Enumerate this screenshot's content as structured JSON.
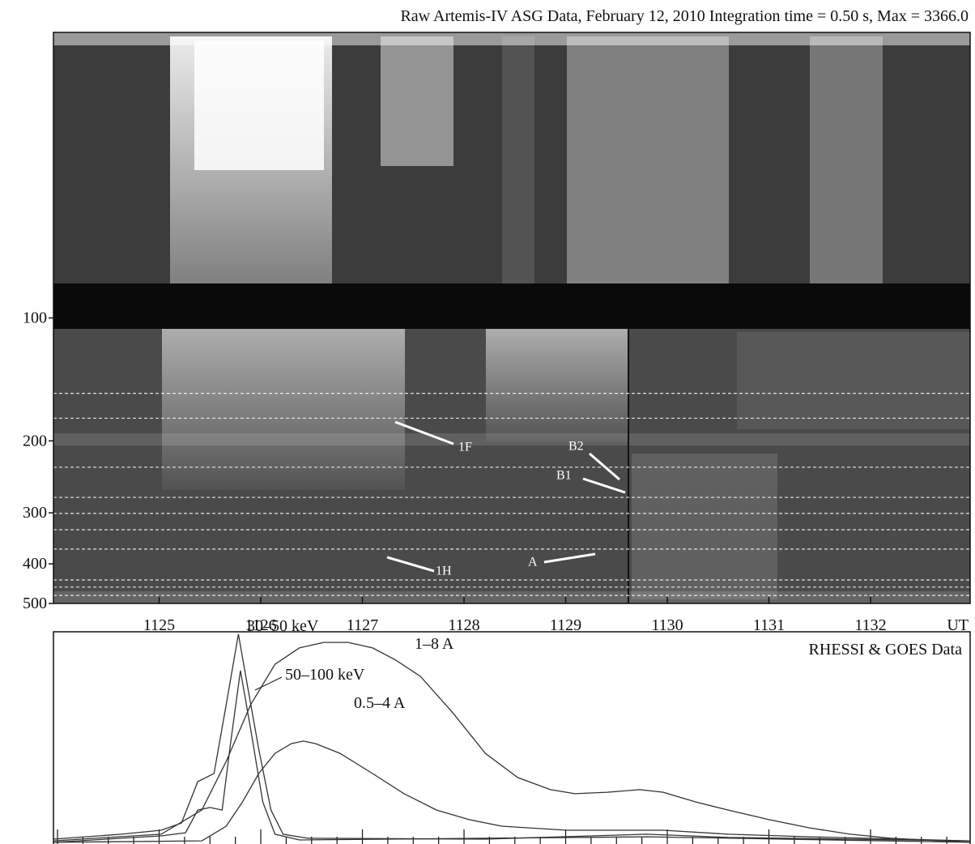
{
  "chart_data": [
    {
      "type": "spectrogram",
      "title": "Raw Artemis-IV ASG Data, February 12, 2010 Integration time = 0.50 s, Max = 3366.0",
      "xlim": [
        1123.96,
        1132.98
      ],
      "xticks": [
        1125,
        1126,
        1127,
        1128,
        1129,
        1130,
        1131,
        1132
      ],
      "x_label": "UT",
      "ylim": [
        20,
        500
      ],
      "yticks": [
        100,
        200,
        300,
        400,
        500
      ],
      "y_log": true,
      "y_inverted": true,
      "reference_lines": [
        153,
        176,
        232,
        275,
        301,
        330,
        368,
        438,
        456,
        478
      ],
      "annotations": [
        "1F",
        "B2",
        "B1",
        "A",
        "1H"
      ]
    },
    {
      "type": "line",
      "title": "RHESSI & GOES Data",
      "xlim": [
        1123.96,
        1132.98
      ],
      "xticks": [
        1124,
        1124.25,
        1124.5,
        1124.75,
        1125,
        1125.25,
        1125.5,
        1125.75,
        1126,
        1126.25,
        1126.5,
        1126.75,
        1127,
        1127.25,
        1127.5,
        1127.75,
        1128,
        1128.25,
        1128.5,
        1128.75,
        1129,
        1129.25,
        1129.5,
        1129.75,
        1130,
        1130.25,
        1130.5,
        1130.75,
        1131,
        1131.25,
        1131.5,
        1131.75,
        1132,
        1132.25,
        1132.5,
        1132.75
      ],
      "ylim": [
        0,
        100
      ],
      "series": [
        {
          "name": "30–50 keV",
          "color": "#333333",
          "x": [
            1123.96,
            1124.63,
            1125.02,
            1125.22,
            1125.38,
            1125.54,
            1125.66,
            1125.78,
            1125.86,
            1125.98,
            1126.1,
            1126.22,
            1126.46,
            1128.21,
            1129.8,
            1130.6,
            1132.98
          ],
          "values": [
            2.3,
            4.6,
            6.5,
            9.9,
            29.4,
            33.2,
            65.6,
            98.9,
            77.1,
            44.7,
            16.0,
            4.6,
            2.7,
            2.3,
            4.6,
            3.1,
            1.5
          ]
        },
        {
          "name": "50–100 keV",
          "color": "#333333",
          "x": [
            1123.96,
            1125.02,
            1125.26,
            1125.38,
            1125.5,
            1125.62,
            1125.7,
            1125.8,
            1125.9,
            1126.02,
            1126.14,
            1126.38,
            1129.8,
            1132.98
          ],
          "values": [
            0.8,
            3.8,
            5.3,
            16.0,
            17.2,
            16.0,
            46.6,
            81.7,
            54.2,
            19.8,
            4.6,
            1.9,
            3.4,
            0.8
          ]
        },
        {
          "name": "1–8 A",
          "color": "#333333",
          "x": [
            1123.96,
            1125.02,
            1125.42,
            1125.66,
            1125.9,
            1126.14,
            1126.38,
            1126.62,
            1126.86,
            1127.1,
            1127.33,
            1127.57,
            1127.89,
            1128.21,
            1128.53,
            1128.85,
            1129.09,
            1129.41,
            1129.73,
            1129.96,
            1130.28,
            1130.6,
            1131.0,
            1131.4,
            1131.8,
            1132.2,
            1132.98
          ],
          "values": [
            1.5,
            4.6,
            16.0,
            38.9,
            65.6,
            84.7,
            92.4,
            95.0,
            95.0,
            92.4,
            86.6,
            79.0,
            61.8,
            42.7,
            31.3,
            25.6,
            23.7,
            24.4,
            25.6,
            24.4,
            19.8,
            16.0,
            11.5,
            7.6,
            4.6,
            2.7,
            0.8
          ]
        },
        {
          "name": "0.5–4 A",
          "color": "#333333",
          "x": [
            1123.96,
            1125.42,
            1125.66,
            1125.82,
            1125.98,
            1126.14,
            1126.3,
            1126.42,
            1126.54,
            1126.78,
            1127.1,
            1127.41,
            1127.73,
            1128.05,
            1128.37,
            1129.01,
            1129.96,
            1130.6,
            1131.4,
            1132.98
          ],
          "values": [
            0.8,
            1.5,
            8.4,
            19.8,
            33.2,
            42.7,
            47.3,
            48.5,
            47.3,
            42.7,
            33.2,
            23.7,
            16.0,
            11.5,
            8.4,
            6.5,
            6.5,
            4.6,
            3.4,
            1.5
          ]
        }
      ]
    }
  ]
}
